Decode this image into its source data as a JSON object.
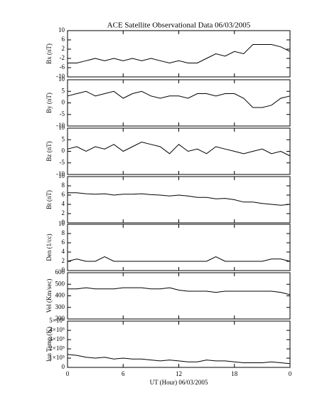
{
  "chart_data": [
    {
      "type": "line",
      "title": "ACE Satellite Observational Data   06/03/2005",
      "ylabel": "Bx (nT)",
      "color": "#000000",
      "x": [
        0,
        1,
        2,
        3,
        4,
        5,
        6,
        7,
        8,
        9,
        10,
        11,
        12,
        13,
        14,
        15,
        16,
        17,
        18,
        19,
        20,
        21,
        22,
        23,
        24
      ],
      "xlim": [
        0,
        24
      ],
      "values": [
        -4,
        -4,
        -3,
        -2,
        -3,
        -2,
        -3,
        -2,
        -3,
        -2,
        -3,
        -4,
        -3,
        -4,
        -4,
        -2,
        0,
        -1,
        1,
        0,
        4,
        4,
        4,
        3,
        1
      ],
      "ylim": [
        -10,
        10
      ],
      "yticks": [
        -10,
        -6,
        -2,
        2,
        6,
        10
      ]
    },
    {
      "type": "line",
      "ylabel": "By (nT)",
      "color": "#000000",
      "x": [
        0,
        1,
        2,
        3,
        4,
        5,
        6,
        7,
        8,
        9,
        10,
        11,
        12,
        13,
        14,
        15,
        16,
        17,
        18,
        19,
        20,
        21,
        22,
        23,
        24
      ],
      "xlim": [
        0,
        24
      ],
      "values": [
        3,
        4,
        5,
        3,
        4,
        5,
        2,
        4,
        5,
        3,
        2,
        3,
        3,
        2,
        4,
        4,
        3,
        4,
        4,
        2,
        -2,
        -2,
        -1,
        2,
        3
      ],
      "ylim": [
        -10,
        10
      ],
      "yticks": [
        -10,
        -5,
        0,
        5,
        10
      ]
    },
    {
      "type": "line",
      "ylabel": "Bz (nT)",
      "color": "#000000",
      "x": [
        0,
        1,
        2,
        3,
        4,
        5,
        6,
        7,
        8,
        9,
        10,
        11,
        12,
        13,
        14,
        15,
        16,
        17,
        18,
        19,
        20,
        21,
        22,
        23,
        24
      ],
      "xlim": [
        0,
        24
      ],
      "values": [
        1,
        2,
        0,
        2,
        1,
        3,
        0,
        2,
        4,
        3,
        2,
        -1,
        3,
        0,
        1,
        -1,
        2,
        1,
        0,
        -1,
        0,
        1,
        -1,
        0,
        -2
      ],
      "ylim": [
        -10,
        10
      ],
      "yticks": [
        -10,
        -5,
        0,
        5,
        10
      ]
    },
    {
      "type": "line",
      "ylabel": "Bt (nT)",
      "color": "#000000",
      "x": [
        0,
        1,
        2,
        3,
        4,
        5,
        6,
        7,
        8,
        9,
        10,
        11,
        12,
        13,
        14,
        15,
        16,
        17,
        18,
        19,
        20,
        21,
        22,
        23,
        24
      ],
      "xlim": [
        0,
        24
      ],
      "values": [
        6.5,
        6.5,
        6.3,
        6.2,
        6.3,
        6,
        6.2,
        6.2,
        6.3,
        6.1,
        6,
        5.8,
        6,
        5.8,
        5.5,
        5.5,
        5.2,
        5.3,
        5,
        4.5,
        4.5,
        4.2,
        4,
        3.8,
        4
      ],
      "ylim": [
        0,
        10
      ],
      "yticks": [
        0,
        2,
        4,
        6,
        8,
        10
      ]
    },
    {
      "type": "line",
      "ylabel": "Den (1/cc)",
      "color": "#000000",
      "x": [
        0,
        1,
        2,
        3,
        4,
        5,
        6,
        7,
        8,
        9,
        10,
        11,
        12,
        13,
        14,
        15,
        16,
        17,
        18,
        19,
        20,
        21,
        22,
        23,
        24
      ],
      "xlim": [
        0,
        24
      ],
      "values": [
        2,
        2.5,
        2,
        2,
        3,
        2,
        2,
        2,
        2,
        2,
        2,
        2,
        2,
        2,
        2,
        2,
        3,
        2,
        2,
        2,
        2,
        2,
        2.5,
        2.5,
        2
      ],
      "ylim": [
        0,
        10
      ],
      "yticks": [
        0,
        2,
        4,
        6,
        8,
        10
      ]
    },
    {
      "type": "line",
      "ylabel": "Vel (Km/sec)",
      "color": "#000000",
      "x": [
        0,
        1,
        2,
        3,
        4,
        5,
        6,
        7,
        8,
        9,
        10,
        11,
        12,
        13,
        14,
        15,
        16,
        17,
        18,
        19,
        20,
        21,
        22,
        23,
        24
      ],
      "xlim": [
        0,
        24
      ],
      "values": [
        460,
        460,
        470,
        460,
        460,
        460,
        470,
        470,
        470,
        460,
        460,
        470,
        450,
        440,
        440,
        440,
        430,
        440,
        440,
        440,
        440,
        440,
        440,
        430,
        410
      ],
      "ylim": [
        200,
        600
      ],
      "yticks": [
        200,
        300,
        400,
        500,
        600
      ]
    },
    {
      "type": "line",
      "ylabel": "Ion Temp (K)",
      "xlabel": "UT (Hour)   06/03/2005",
      "color": "#000000",
      "x": [
        0,
        1,
        2,
        3,
        4,
        5,
        6,
        7,
        8,
        9,
        10,
        11,
        12,
        13,
        14,
        15,
        16,
        17,
        18,
        19,
        20,
        21,
        22,
        23,
        24
      ],
      "xlim": [
        0,
        24
      ],
      "values": [
        140000,
        130000,
        110000,
        100000,
        110000,
        90000,
        100000,
        90000,
        90000,
        80000,
        70000,
        80000,
        70000,
        60000,
        60000,
        80000,
        70000,
        70000,
        60000,
        50000,
        50000,
        50000,
        60000,
        50000,
        40000
      ],
      "ylim": [
        0,
        500000
      ],
      "yticks": [
        0,
        {
          "value": 100000,
          "label": "1×10⁵"
        },
        {
          "value": 200000,
          "label": "2×10⁵"
        },
        {
          "value": 300000,
          "label": "3×10⁵"
        },
        {
          "value": 400000,
          "label": "4×10⁵"
        },
        {
          "value": 500000,
          "label": "5×10⁵"
        }
      ],
      "xticks": [
        0,
        6,
        12,
        18,
        {
          "value": 24,
          "label": "0"
        }
      ]
    }
  ]
}
